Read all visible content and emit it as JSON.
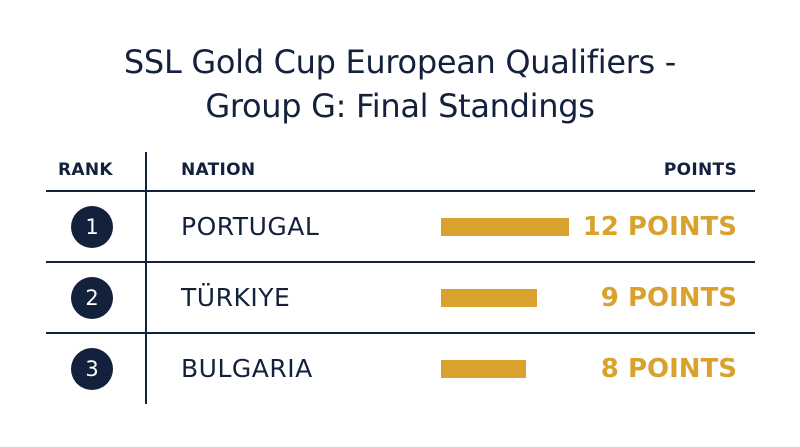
{
  "title_line1": "SSL Gold Cup European Qualifiers -",
  "title_line2": "Group G: Final Standings",
  "headers": {
    "rank": "RANK",
    "nation": "NATION",
    "points": "POINTS"
  },
  "colors": {
    "navy": "#14213d",
    "gold": "#d9a12e"
  },
  "chart_data": {
    "type": "bar",
    "title": "SSL Gold Cup European Qualifiers - Group G: Final Standings",
    "categories": [
      "PORTUGAL",
      "TÜRKIYE",
      "BULGARIA"
    ],
    "values": [
      12,
      9,
      8
    ],
    "ranks": [
      "1",
      "2",
      "3"
    ],
    "value_labels": [
      "12 POINTS",
      "9 POINTS",
      "8 POINTS"
    ],
    "xlim": [
      0,
      12
    ]
  }
}
